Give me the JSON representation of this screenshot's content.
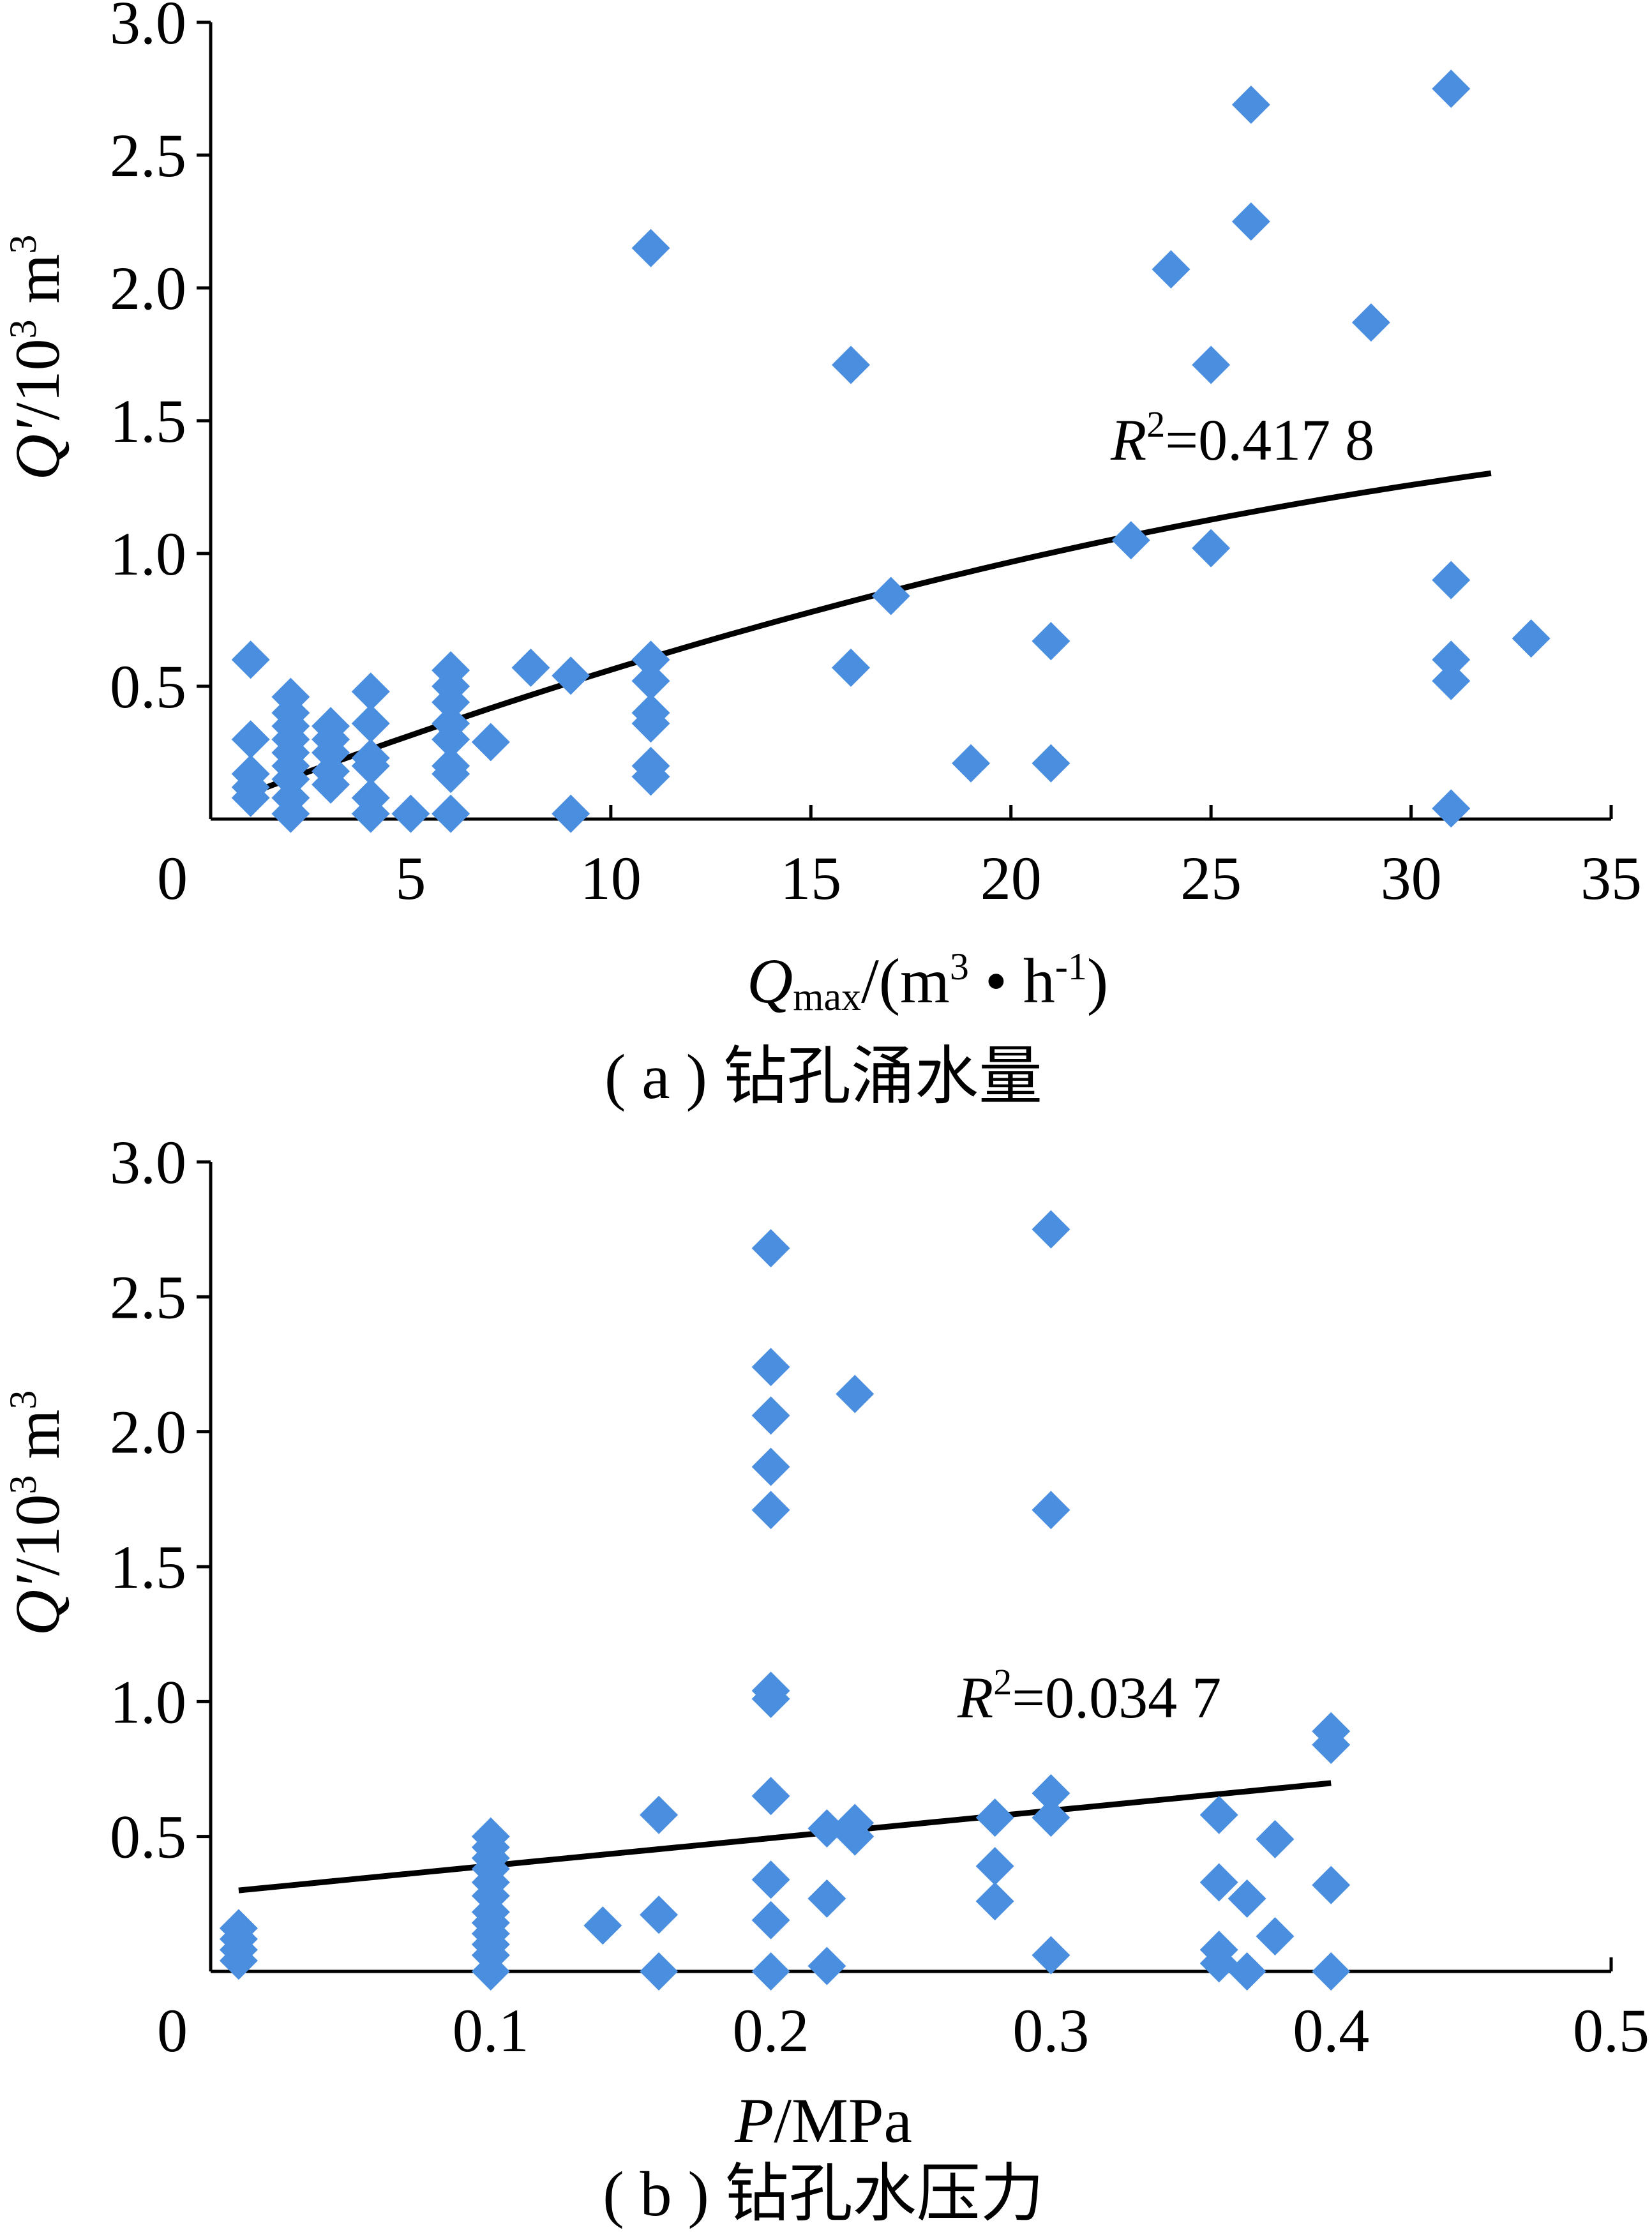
{
  "chart_data": [
    {
      "id": "a",
      "type": "scatter",
      "caption": "( a ) 钻孔涌水量",
      "xlabel": {
        "main": "Q",
        "sub": "max",
        "rest": "/(m",
        "sup1": "3",
        "mid": " • h",
        "sup2": "-1",
        "end": ")"
      },
      "ylabel": {
        "main": "Q′",
        "rest": "/10",
        "sup1": "3",
        "mid": " m",
        "sup2": "3"
      },
      "xlim": [
        0,
        35
      ],
      "ylim": [
        0,
        3.0
      ],
      "xticks": [
        "0",
        "5",
        "10",
        "15",
        "20",
        "25",
        "30",
        "35"
      ],
      "yticks": [
        "0.5",
        "1.0",
        "1.5",
        "2.0",
        "2.5",
        "3.0"
      ],
      "r2": {
        "label": "R",
        "sup": "2",
        "value": "=0.417 8"
      },
      "trendline": {
        "kind": "polynomial",
        "x_range": [
          1,
          32
        ],
        "coeffs": [
          0.04,
          0.058,
          -0.00058
        ]
      },
      "points": [
        [
          1,
          0.6
        ],
        [
          1,
          0.3
        ],
        [
          1,
          0.17
        ],
        [
          1,
          0.12
        ],
        [
          1,
          0.08
        ],
        [
          2,
          0.46
        ],
        [
          2,
          0.4
        ],
        [
          2,
          0.35
        ],
        [
          2,
          0.3
        ],
        [
          2,
          0.25
        ],
        [
          2,
          0.2
        ],
        [
          2,
          0.15
        ],
        [
          2,
          0.08
        ],
        [
          2,
          0.02
        ],
        [
          3,
          0.35
        ],
        [
          3,
          0.3
        ],
        [
          3,
          0.25
        ],
        [
          3,
          0.18
        ],
        [
          3,
          0.13
        ],
        [
          4,
          0.48
        ],
        [
          4,
          0.36
        ],
        [
          4,
          0.23
        ],
        [
          4,
          0.2
        ],
        [
          4,
          0.08
        ],
        [
          4,
          0.02
        ],
        [
          5,
          0.02
        ],
        [
          6,
          0.56
        ],
        [
          6,
          0.5
        ],
        [
          6,
          0.44
        ],
        [
          6,
          0.36
        ],
        [
          6,
          0.3
        ],
        [
          6,
          0.2
        ],
        [
          6,
          0.17
        ],
        [
          6,
          0.02
        ],
        [
          7,
          0.29
        ],
        [
          8,
          0.57
        ],
        [
          9,
          0.54
        ],
        [
          9,
          0.02
        ],
        [
          11,
          0.6
        ],
        [
          11,
          0.52
        ],
        [
          11,
          0.4
        ],
        [
          11,
          0.36
        ],
        [
          11,
          0.2
        ],
        [
          11,
          0.16
        ],
        [
          11,
          2.15
        ],
        [
          16,
          1.71
        ],
        [
          16,
          0.57
        ],
        [
          17,
          0.84
        ],
        [
          19,
          0.21
        ],
        [
          21,
          0.67
        ],
        [
          21,
          0.21
        ],
        [
          23,
          1.05
        ],
        [
          24,
          2.07
        ],
        [
          25,
          1.71
        ],
        [
          25,
          1.02
        ],
        [
          26,
          2.69
        ],
        [
          26,
          2.25
        ],
        [
          29,
          1.87
        ],
        [
          31,
          2.75
        ],
        [
          31,
          0.9
        ],
        [
          31,
          0.6
        ],
        [
          31,
          0.52
        ],
        [
          31,
          0.04
        ],
        [
          33,
          0.68
        ]
      ]
    },
    {
      "id": "b",
      "type": "scatter",
      "caption": "( b ) 钻孔水压力",
      "xlabel": {
        "main": "P",
        "rest": "/MPa"
      },
      "ylabel": {
        "main": "Q′",
        "rest": "/10",
        "sup1": "3",
        "mid": " m",
        "sup2": "3"
      },
      "xlim": [
        0,
        0.5
      ],
      "ylim": [
        0,
        3.0
      ],
      "xticks": [
        "0",
        "0.1",
        "0.2",
        "0.3",
        "0.4",
        "0.5"
      ],
      "yticks": [
        "0.5",
        "1.0",
        "1.5",
        "2.0",
        "2.5",
        "3.0"
      ],
      "r2": {
        "label": "R",
        "sup": "2",
        "value": "=0.034 7"
      },
      "trendline": {
        "kind": "linear",
        "x_range": [
          0.01,
          0.4
        ],
        "coeffs": [
          0.29,
          1.02
        ]
      },
      "points": [
        [
          0.01,
          0.16
        ],
        [
          0.01,
          0.12
        ],
        [
          0.01,
          0.08
        ],
        [
          0.01,
          0.04
        ],
        [
          0.1,
          0.5
        ],
        [
          0.1,
          0.46
        ],
        [
          0.1,
          0.42
        ],
        [
          0.1,
          0.38
        ],
        [
          0.1,
          0.33
        ],
        [
          0.1,
          0.28
        ],
        [
          0.1,
          0.22
        ],
        [
          0.1,
          0.18
        ],
        [
          0.1,
          0.14
        ],
        [
          0.1,
          0.1
        ],
        [
          0.1,
          0.06
        ],
        [
          0.1,
          0.0
        ],
        [
          0.14,
          0.17
        ],
        [
          0.16,
          0.58
        ],
        [
          0.16,
          0.21
        ],
        [
          0.16,
          0.0
        ],
        [
          0.2,
          2.68
        ],
        [
          0.2,
          2.24
        ],
        [
          0.2,
          2.06
        ],
        [
          0.2,
          1.87
        ],
        [
          0.2,
          1.71
        ],
        [
          0.2,
          1.04
        ],
        [
          0.2,
          1.01
        ],
        [
          0.2,
          0.65
        ],
        [
          0.2,
          0.34
        ],
        [
          0.2,
          0.19
        ],
        [
          0.2,
          0.0
        ],
        [
          0.22,
          0.53
        ],
        [
          0.22,
          0.27
        ],
        [
          0.22,
          0.02
        ],
        [
          0.23,
          2.14
        ],
        [
          0.23,
          0.55
        ],
        [
          0.23,
          0.5
        ],
        [
          0.28,
          0.57
        ],
        [
          0.28,
          0.39
        ],
        [
          0.28,
          0.26
        ],
        [
          0.3,
          2.75
        ],
        [
          0.3,
          1.71
        ],
        [
          0.3,
          0.66
        ],
        [
          0.3,
          0.57
        ],
        [
          0.3,
          0.06
        ],
        [
          0.36,
          0.58
        ],
        [
          0.36,
          0.33
        ],
        [
          0.36,
          0.08
        ],
        [
          0.36,
          0.03
        ],
        [
          0.37,
          0.27
        ],
        [
          0.37,
          0.0
        ],
        [
          0.38,
          0.49
        ],
        [
          0.38,
          0.13
        ],
        [
          0.4,
          0.89
        ],
        [
          0.4,
          0.84
        ],
        [
          0.4,
          0.32
        ],
        [
          0.4,
          0.0
        ]
      ]
    }
  ]
}
